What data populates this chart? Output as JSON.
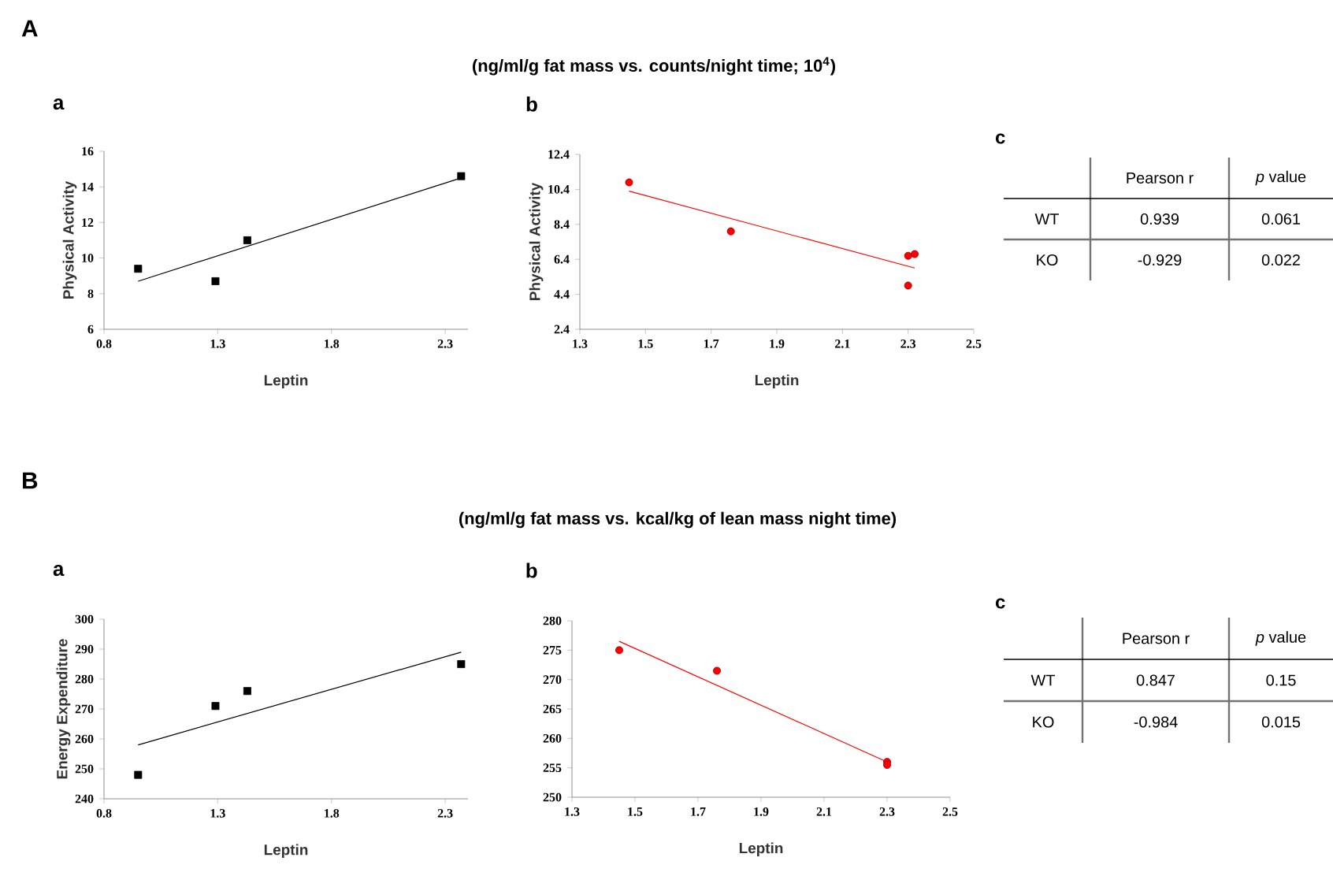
{
  "chart_data": [
    {
      "type": "other",
      "title": "(ng/ml/g fat mass vs. counts/night time; 10$^{4}$)",
      "annotations": [
        "A"
      ]
    },
    {
      "type": "scatter",
      "title": "a",
      "xlabel": "Leptin",
      "ylabel": "Physical Activity",
      "xlim": [
        0.8,
        2.4
      ],
      "xticks": [
        0.8,
        1.3,
        1.8,
        2.3
      ],
      "ylim": [
        6,
        16
      ],
      "yticks": [
        6,
        8,
        10,
        12,
        14,
        16
      ],
      "series": [
        {
          "type": "scatter",
          "marker": "square",
          "color": "#000000",
          "x": [
            0.95,
            1.29,
            1.43,
            2.37
          ],
          "values": [
            9.4,
            8.7,
            11.0,
            14.6
          ]
        },
        {
          "type": "line",
          "marker": "none",
          "color": "#000000",
          "x": [
            0.95,
            2.37
          ],
          "values": [
            8.7,
            14.5
          ]
        }
      ]
    },
    {
      "type": "scatter",
      "title": "b",
      "xlabel": "Leptin",
      "ylabel": "Physical Activity",
      "xlim": [
        1.3,
        2.5
      ],
      "xticks": [
        1.3,
        1.5,
        1.7,
        1.9,
        2.1,
        2.3,
        2.5
      ],
      "ylim": [
        2.4,
        12.4
      ],
      "yticks": [
        2.4,
        4.4,
        6.4,
        8.4,
        10.4,
        12.4
      ],
      "series": [
        {
          "type": "scatter",
          "marker": "circle",
          "color": "#ff0000",
          "x": [
            1.45,
            1.76,
            2.3,
            2.32,
            2.3
          ],
          "values": [
            10.8,
            8.0,
            6.6,
            6.7,
            4.9
          ]
        },
        {
          "type": "line",
          "marker": "none",
          "color": "#ff0000",
          "x": [
            1.45,
            2.32
          ],
          "values": [
            10.3,
            5.9
          ]
        }
      ]
    },
    {
      "type": "heatmap",
      "title": "c",
      "categories": [
        "Pearson r",
        "*p* value"
      ],
      "y_categories": [
        "WT",
        "KO"
      ],
      "cells": [
        [
          0.939,
          0.061
        ],
        [
          -0.929,
          0.022
        ]
      ],
      "data_labels": true
    },
    {
      "type": "other",
      "title": "(ng/ml/g fat mass vs. kcal/kg of lean mass night time)",
      "annotations": [
        "B"
      ]
    },
    {
      "type": "scatter",
      "title": "a",
      "xlabel": "Leptin",
      "ylabel": "Energy Expenditure",
      "xlim": [
        0.8,
        2.4
      ],
      "xticks": [
        0.8,
        1.3,
        1.8,
        2.3
      ],
      "ylim": [
        240,
        300
      ],
      "yticks": [
        240,
        250,
        260,
        270,
        280,
        290,
        300
      ],
      "series": [
        {
          "type": "scatter",
          "marker": "square",
          "color": "#000000",
          "x": [
            0.95,
            1.29,
            1.43,
            2.37
          ],
          "values": [
            248,
            271,
            276,
            285
          ]
        },
        {
          "type": "line",
          "marker": "none",
          "color": "#000000",
          "x": [
            0.95,
            2.37
          ],
          "values": [
            258,
            289
          ]
        }
      ]
    },
    {
      "type": "scatter",
      "title": "b",
      "xlabel": "Leptin",
      "xlim": [
        1.3,
        2.5
      ],
      "xticks": [
        1.3,
        1.5,
        1.7,
        1.9,
        2.1,
        2.3,
        2.5
      ],
      "ylim": [
        250,
        280
      ],
      "yticks": [
        250,
        255,
        260,
        265,
        270,
        275,
        280
      ],
      "series": [
        {
          "type": "scatter",
          "marker": "circle",
          "color": "#ff0000",
          "x": [
            1.45,
            1.76,
            2.3,
            2.3
          ],
          "values": [
            275,
            271.5,
            256,
            255.5
          ]
        },
        {
          "type": "line",
          "marker": "none",
          "color": "#ff0000",
          "x": [
            1.45,
            2.3
          ],
          "values": [
            276.5,
            256
          ]
        }
      ]
    },
    {
      "type": "heatmap",
      "title": "c",
      "categories": [
        "Pearson r",
        "*p* value"
      ],
      "y_categories": [
        "WT",
        "KO"
      ],
      "cells": [
        [
          0.847,
          0.15
        ],
        [
          -0.984,
          0.015
        ]
      ],
      "data_labels": true
    }
  ]
}
